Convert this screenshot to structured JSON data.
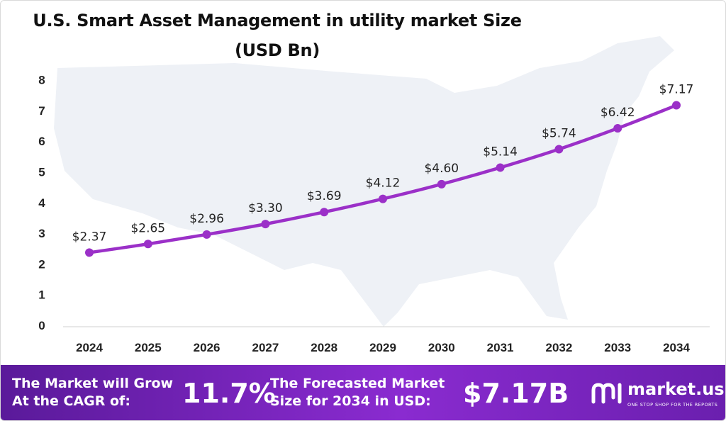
{
  "title_line1": "U.S. Smart Asset Management  in utility market Size",
  "title_line2": "(USD Bn)",
  "colors": {
    "line": "#9b30c8",
    "marker": "#9b30c8",
    "map": "#eef1f6",
    "footer_start": "#5a1a9a",
    "footer_end": "#8a2bd0"
  },
  "chart_data": {
    "type": "line",
    "categories": [
      "2024",
      "2025",
      "2026",
      "2027",
      "2028",
      "2029",
      "2030",
      "2031",
      "2032",
      "2033",
      "2034"
    ],
    "values": [
      2.37,
      2.65,
      2.96,
      3.3,
      3.69,
      4.12,
      4.6,
      5.14,
      5.74,
      6.42,
      7.17
    ],
    "data_labels": [
      "$2.37",
      "$2.65",
      "$2.96",
      "$3.30",
      "$3.69",
      "$4.12",
      "$4.60",
      "$5.14",
      "$5.74",
      "$6.42",
      "$7.17"
    ],
    "y_ticks": [
      "0",
      "1",
      "2",
      "3",
      "4",
      "5",
      "6",
      "7",
      "8"
    ],
    "ylim": [
      0,
      8
    ],
    "title": "U.S. Smart Asset Management  in utility market Size (USD Bn)",
    "xlabel": "",
    "ylabel": "",
    "grid": false,
    "legend": "none"
  },
  "footer": {
    "cagr_label": "The Market will Grow\nAt the CAGR of:",
    "cagr_value": "11.7%",
    "forecast_label": "The Forecasted Market\nSize for 2034 in USD:",
    "forecast_value": "$7.17B",
    "brand_name": "market.us",
    "brand_tagline": "ONE STOP SHOP FOR THE REPORTS"
  }
}
